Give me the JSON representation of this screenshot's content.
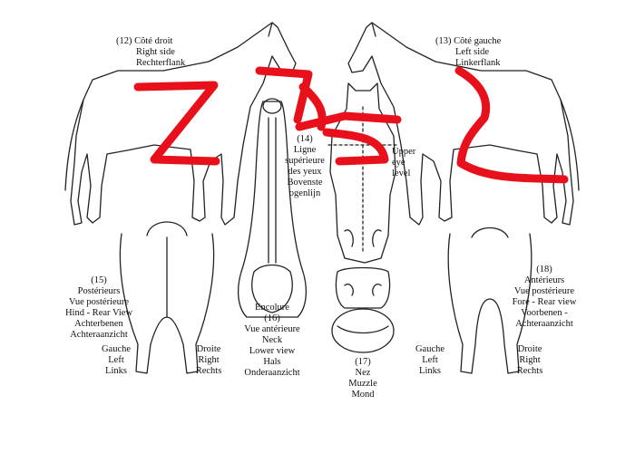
{
  "labels": {
    "right_side": [
      "(12)  Côté droit",
      "Right side",
      "Rechterflank"
    ],
    "left_side": [
      "(13)  Côté gauche",
      "Left side",
      "Linkerflank"
    ],
    "eye_level": [
      "(14)",
      "Ligne",
      "supérieure",
      "des yeux",
      "Bovenste",
      "ogenlijn"
    ],
    "upper_eye_level": [
      "Upper",
      "eye",
      "level"
    ],
    "rear_view": [
      "(15)",
      "Postérieurs",
      "Vue postérieure",
      "Hind - Rear View",
      "Achterbenen",
      "Achteraanzicht"
    ],
    "rear_left": [
      "Gauche",
      "Left",
      "Links"
    ],
    "rear_right": [
      "Droite",
      "Right",
      "Rechts"
    ],
    "lower_view": [
      "Encolure",
      "(16)",
      "Vue antérieure",
      "Neck",
      "Lower view",
      "Hals",
      "Onderaanzicht"
    ],
    "muzzle": [
      "(17)",
      "Nez",
      "Muzzle",
      "Mond"
    ],
    "front_view": [
      "(18)",
      "Antérieurs",
      "Vue postérieure",
      "Fore - Rear view",
      "Voorbenen -",
      "Achteraanzicht"
    ],
    "front_left": [
      "Gauche",
      "Left",
      "Links"
    ],
    "front_right": [
      "Droite",
      "Right",
      "Rechts"
    ]
  },
  "colors": {
    "line_art": "#222222",
    "scribble": "#e8111b"
  },
  "annotations": {
    "scribble_glyphs": "z z z"
  }
}
